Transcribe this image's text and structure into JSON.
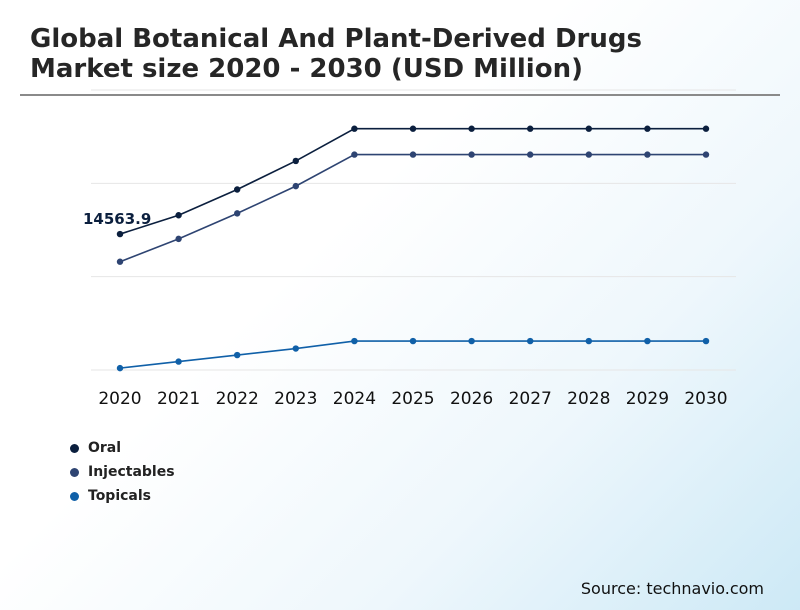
{
  "title_line1": "Global Botanical And Plant-Derived Drugs",
  "title_line2": "Market size 2020 - 2030 (USD Million)",
  "source": "Source: technavio.com",
  "chart_data": {
    "type": "line",
    "title": "Global Botanical And Plant-Derived Drugs Market size 2020 - 2030 (USD Million)",
    "xlabel": "",
    "ylabel": "",
    "x": [
      "2020",
      "2021",
      "2022",
      "2023",
      "2024",
      "2025",
      "2026",
      "2027",
      "2028",
      "2029",
      "2030"
    ],
    "ylim": [
      0,
      30000
    ],
    "grid": true,
    "legend_position": "bottom-left",
    "annotations": [
      {
        "series": "Oral",
        "x": "2020",
        "text": "14563.9"
      }
    ],
    "series": [
      {
        "name": "Oral",
        "color": "#0b1f3e",
        "values": [
          14563.9,
          16580,
          19340,
          22400,
          25850,
          25850,
          25850,
          25850,
          25850,
          25850,
          25850
        ]
      },
      {
        "name": "Injectables",
        "color": "#2e4472",
        "values": [
          11600,
          14050,
          16780,
          19700,
          23080,
          23080,
          23080,
          23080,
          23080,
          23080,
          23080
        ]
      },
      {
        "name": "Topicals",
        "color": "#1060a8",
        "values": [
          200,
          900,
          1600,
          2300,
          3100,
          3100,
          3100,
          3100,
          3100,
          3100,
          3100
        ]
      }
    ]
  }
}
